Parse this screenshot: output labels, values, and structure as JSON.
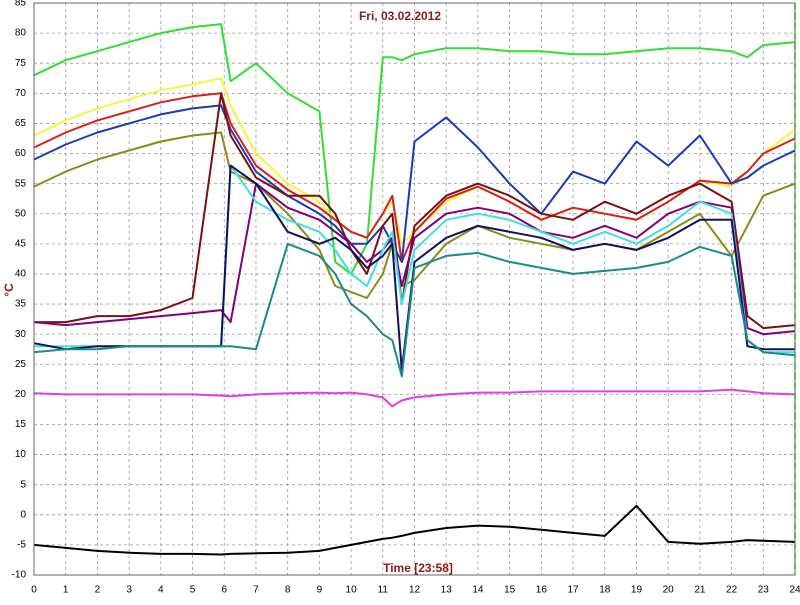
{
  "chart_data": {
    "type": "line",
    "title": "Fri, 03.02.2012",
    "xlabel": "Time [23:58]",
    "ylabel": "°C",
    "x": [
      0,
      1,
      2,
      3,
      4,
      5,
      5.9,
      6.2,
      7,
      8,
      9,
      9.5,
      10,
      10.5,
      11,
      11.3,
      11.6,
      12,
      13,
      14,
      15,
      16,
      17,
      18,
      19,
      20,
      21,
      22,
      22.5,
      23,
      24
    ],
    "series": [
      {
        "color": "#33dd33",
        "values": [
          73,
          75.5,
          77,
          78.5,
          80,
          81,
          81.5,
          72,
          75,
          70,
          67,
          42,
          40,
          45,
          76,
          76,
          75.5,
          76.5,
          77.5,
          77.5,
          77,
          77,
          76.5,
          76.5,
          77,
          77.5,
          77.5,
          77,
          76,
          78,
          78.5
        ]
      },
      {
        "color": "#f5f53a",
        "values": [
          63,
          65.5,
          67.5,
          69,
          70.5,
          71.5,
          72.5,
          68,
          60,
          55,
          52,
          49,
          47,
          46,
          50,
          52,
          45,
          47,
          52,
          54.5,
          52,
          49,
          51,
          50,
          49,
          52,
          55.5,
          54.5,
          57,
          60,
          64
        ]
      },
      {
        "color": "#d42020",
        "values": [
          61,
          63.5,
          65.5,
          67,
          68.5,
          69.5,
          70,
          65,
          58,
          54,
          51,
          49,
          47,
          46,
          50,
          53,
          42,
          47,
          52.5,
          54.5,
          52,
          49,
          51,
          50,
          49,
          52,
          55.5,
          55,
          57,
          60,
          62.5
        ]
      },
      {
        "color": "#1a3ab8",
        "values": [
          59,
          61.5,
          63.5,
          65,
          66.5,
          67.5,
          68,
          64,
          57,
          53,
          50,
          48,
          45,
          45,
          48,
          45,
          42,
          62,
          66,
          61,
          55,
          50,
          57,
          55,
          62,
          58,
          63,
          55,
          56,
          58,
          60.5
        ]
      },
      {
        "color": "#8b8b1a",
        "values": [
          54.5,
          57,
          59,
          60.5,
          62,
          63,
          63.5,
          57,
          55,
          50,
          44,
          38,
          37,
          36,
          40,
          45,
          38,
          39,
          45,
          48,
          46,
          45,
          44,
          45,
          44,
          47,
          50,
          43,
          48,
          53,
          55
        ]
      },
      {
        "color": "#7a1010",
        "values": [
          32,
          32,
          33,
          33,
          34,
          36,
          70,
          63,
          56,
          53,
          53,
          50,
          44,
          40,
          48,
          50,
          35,
          48,
          53,
          55,
          53,
          50,
          49,
          52,
          50,
          53,
          55,
          52,
          33,
          31,
          31.5
        ]
      },
      {
        "color": "#800080",
        "values": [
          32,
          31.5,
          32,
          32.5,
          33,
          33.5,
          34,
          32,
          55,
          51,
          49,
          47,
          45,
          42,
          44,
          46,
          38,
          46,
          50,
          51,
          50,
          47,
          46,
          48,
          46,
          50,
          52,
          51,
          31,
          30,
          30.5
        ]
      },
      {
        "color": "#40e0e0",
        "values": [
          28,
          28,
          28,
          28,
          28,
          28,
          28,
          58,
          52,
          49,
          47,
          44,
          40,
          38,
          44,
          47,
          35,
          44,
          49,
          50,
          49,
          47,
          45,
          47,
          45,
          48,
          52,
          50,
          29,
          27,
          27
        ]
      },
      {
        "color": "#101060",
        "values": [
          28.5,
          27.5,
          28,
          28,
          28,
          28,
          28,
          58,
          55,
          47,
          45,
          46,
          44,
          41,
          43,
          45,
          24,
          42,
          46,
          48,
          47,
          46,
          44,
          45,
          44,
          46,
          49,
          49,
          28,
          27.5,
          27.5
        ]
      },
      {
        "color": "#1a8a8a",
        "values": [
          27,
          27.5,
          27.5,
          28,
          28,
          28,
          28,
          28,
          27.5,
          45,
          43,
          40,
          35,
          33,
          30,
          29,
          23,
          41,
          43,
          43.5,
          42,
          41,
          40,
          40.5,
          41,
          42,
          44.5,
          43,
          29,
          27,
          26.5
        ]
      },
      {
        "color": "#e040e0",
        "values": [
          20.2,
          20,
          20,
          20,
          20,
          20,
          19.8,
          19.7,
          20,
          20.2,
          20.3,
          20.2,
          20.3,
          20,
          19.5,
          18,
          19,
          19.5,
          20,
          20.3,
          20.3,
          20.5,
          20.5,
          20.5,
          20.5,
          20.5,
          20.5,
          20.8,
          20.5,
          20.2,
          20
        ]
      },
      {
        "color": "#000000",
        "values": [
          -5,
          -5.5,
          -6,
          -6.3,
          -6.5,
          -6.5,
          -6.6,
          -6.5,
          -6.4,
          -6.3,
          -6,
          -5.5,
          -5,
          -4.5,
          -4,
          -3.8,
          -3.5,
          -3,
          -2.2,
          -1.8,
          -2,
          -2.5,
          -3,
          -3.5,
          1.5,
          -4.5,
          -4.8,
          -4.5,
          -4.2,
          -4.3,
          -4.5
        ]
      }
    ],
    "xlim": [
      0,
      24
    ],
    "ylim": [
      -10,
      85
    ],
    "xticks": [
      0,
      1,
      2,
      3,
      4,
      5,
      6,
      7,
      8,
      9,
      10,
      11,
      12,
      13,
      14,
      15,
      16,
      17,
      18,
      19,
      20,
      21,
      22,
      23,
      24
    ],
    "yticks": [
      -10,
      -5,
      0,
      5,
      10,
      15,
      20,
      25,
      30,
      35,
      40,
      45,
      50,
      55,
      60,
      65,
      70,
      75,
      80,
      85
    ],
    "grid": true
  }
}
